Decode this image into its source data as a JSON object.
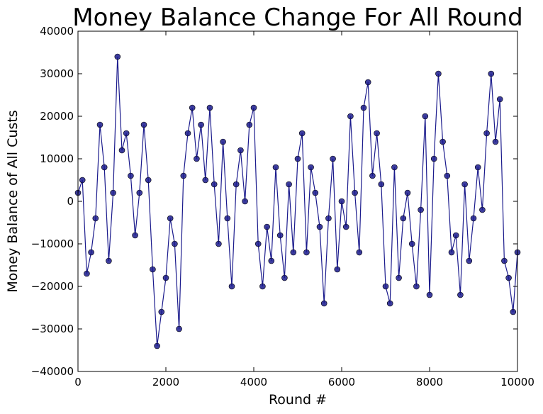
{
  "chart_data": {
    "type": "line",
    "title": "Money Balance Change For All Round",
    "xlabel": "Round #",
    "ylabel": "Money Balance of All Custs",
    "xlim": [
      0,
      10000
    ],
    "ylim": [
      -40000,
      40000
    ],
    "x_ticks": [
      "0",
      "2000",
      "4000",
      "6000",
      "8000",
      "10000"
    ],
    "x_tick_values": [
      0,
      2000,
      4000,
      6000,
      8000,
      10000
    ],
    "y_ticks": [
      "40000",
      "30000",
      "20000",
      "10000",
      "0",
      "−10000",
      "−20000",
      "−30000",
      "−40000"
    ],
    "y_tick_values": [
      40000,
      30000,
      20000,
      10000,
      0,
      -10000,
      -20000,
      -30000,
      -40000
    ],
    "grid": false,
    "series_color": "#1a1a8c",
    "series": [
      {
        "marker": "circle",
        "x": [
          0,
          100,
          200,
          300,
          400,
          500,
          600,
          700,
          800,
          900,
          1000,
          1100,
          1200,
          1300,
          1400,
          1500,
          1600,
          1700,
          1800,
          1900,
          2000,
          2100,
          2200,
          2300,
          2400,
          2500,
          2600,
          2700,
          2800,
          2900,
          3000,
          3100,
          3200,
          3300,
          3400,
          3500,
          3600,
          3700,
          3800,
          3900,
          4000,
          4100,
          4200,
          4300,
          4400,
          4500,
          4600,
          4700,
          4800,
          4900,
          5000,
          5100,
          5200,
          5300,
          5400,
          5500,
          5600,
          5700,
          5800,
          5900,
          6000,
          6100,
          6200,
          6300,
          6400,
          6500,
          6600,
          6700,
          6800,
          6900,
          7000,
          7100,
          7200,
          7300,
          7400,
          7500,
          7600,
          7700,
          7800,
          7900,
          8000,
          8100,
          8200,
          8300,
          8400,
          8500,
          8600,
          8700,
          8800,
          8900,
          9000,
          9100,
          9200,
          9300,
          9400,
          9500,
          9600,
          9700,
          9800,
          9900,
          10000
        ],
        "y": [
          2000,
          5000,
          -17000,
          -12000,
          -4000,
          18000,
          8000,
          -14000,
          2000,
          34000,
          12000,
          16000,
          6000,
          -8000,
          2000,
          18000,
          5000,
          -16000,
          -34000,
          -26000,
          -18000,
          -4000,
          -10000,
          -30000,
          6000,
          16000,
          22000,
          10000,
          18000,
          5000,
          22000,
          4000,
          -10000,
          14000,
          -4000,
          -20000,
          4000,
          12000,
          0,
          18000,
          22000,
          -10000,
          -20000,
          -6000,
          -14000,
          8000,
          -8000,
          -18000,
          4000,
          -12000,
          10000,
          16000,
          -12000,
          8000,
          2000,
          -6000,
          -24000,
          -4000,
          10000,
          -16000,
          0,
          -6000,
          20000,
          2000,
          -12000,
          22000,
          28000,
          6000,
          16000,
          4000,
          -20000,
          -24000,
          8000,
          -18000,
          -4000,
          2000,
          -10000,
          -20000,
          -2000,
          20000,
          -22000,
          10000,
          30000,
          14000,
          6000,
          -12000,
          -8000,
          -22000,
          4000,
          -14000,
          -4000,
          8000,
          -2000,
          16000,
          30000,
          14000,
          24000,
          -14000,
          -18000,
          -26000,
          -12000
        ]
      }
    ]
  }
}
